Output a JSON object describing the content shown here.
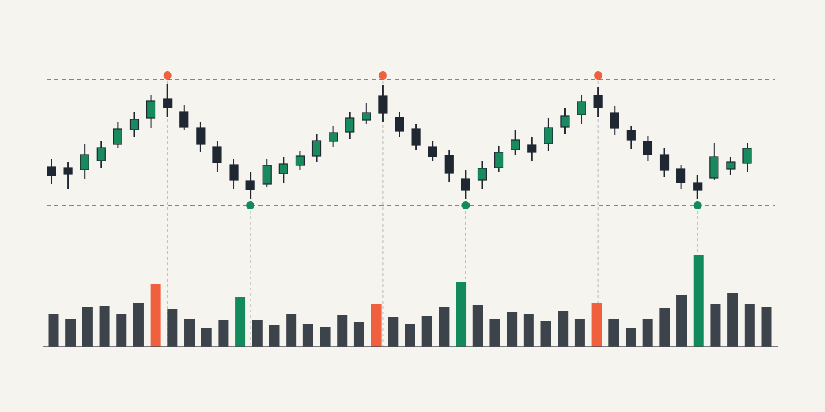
{
  "chart_data": [
    {
      "type": "candlestick",
      "open": [
        77,
        76,
        73,
        86,
        110,
        131,
        148,
        176,
        157,
        134,
        106,
        80,
        57,
        52,
        67,
        79,
        93,
        114,
        128,
        145,
        180,
        149,
        132,
        106,
        94,
        60,
        58,
        76,
        102,
        109,
        111,
        135,
        153,
        181,
        156,
        130,
        114,
        95,
        74,
        54,
        61,
        74,
        82
      ],
      "high": [
        88,
        84,
        110,
        115,
        142,
        157,
        182,
        198,
        167,
        142,
        115,
        88,
        70,
        88,
        92,
        100,
        125,
        137,
        157,
        170,
        196,
        157,
        140,
        115,
        102,
        72,
        85,
        108,
        130,
        120,
        148,
        162,
        182,
        193,
        165,
        137,
        122,
        105,
        80,
        65,
        112,
        92,
        112
      ],
      "low": [
        52,
        45,
        60,
        75,
        105,
        120,
        133,
        150,
        130,
        98,
        70,
        45,
        30,
        48,
        54,
        73,
        84,
        106,
        118,
        140,
        142,
        120,
        102,
        86,
        55,
        30,
        45,
        70,
        95,
        85,
        100,
        125,
        140,
        150,
        124,
        103,
        85,
        62,
        45,
        30,
        58,
        65,
        70
      ],
      "close": [
        64,
        66,
        95,
        105,
        132,
        146,
        173,
        163,
        135,
        110,
        83,
        58,
        44,
        79,
        81,
        93,
        115,
        127,
        148,
        156,
        155,
        129,
        109,
        92,
        68,
        43,
        75,
        98,
        116,
        98,
        134,
        151,
        172,
        163,
        133,
        116,
        95,
        72,
        54,
        43,
        92,
        84,
        104
      ],
      "up_color": "#198a5e",
      "down_color": "#1f2733",
      "ylim": [
        0,
        220
      ],
      "reference_lines": [
        {
          "value": 204,
          "color": "#5a5f6b"
        },
        {
          "value": 21,
          "color": "#5a5f6b"
        }
      ],
      "peak_markers": {
        "color": "#f0603f",
        "values": [
          null,
          null,
          null,
          null,
          null,
          null,
          null,
          210,
          null,
          null,
          null,
          null,
          null,
          null,
          null,
          null,
          null,
          null,
          null,
          null,
          210,
          null,
          null,
          null,
          null,
          null,
          null,
          null,
          null,
          null,
          null,
          null,
          null,
          210,
          null,
          null,
          null,
          null,
          null,
          null,
          null,
          null,
          null
        ]
      },
      "trough_markers": {
        "color": "#138a5e",
        "values": [
          null,
          null,
          null,
          null,
          null,
          null,
          null,
          null,
          null,
          null,
          null,
          null,
          21,
          null,
          null,
          null,
          null,
          null,
          null,
          null,
          null,
          null,
          null,
          null,
          null,
          21,
          null,
          null,
          null,
          null,
          null,
          null,
          null,
          null,
          null,
          null,
          null,
          null,
          null,
          21,
          null,
          null,
          null
        ]
      }
    },
    {
      "type": "bar",
      "values": [
        47,
        40,
        58,
        60,
        48,
        64,
        92,
        55,
        41,
        28,
        39,
        73,
        39,
        32,
        47,
        33,
        29,
        46,
        36,
        63,
        43,
        33,
        45,
        58,
        94,
        61,
        40,
        50,
        48,
        37,
        52,
        40,
        64,
        40,
        28,
        40,
        57,
        75,
        133,
        63,
        78,
        62,
        58
      ],
      "colors": [
        "#3d434a",
        "#3d434a",
        "#3d434a",
        "#3d434a",
        "#3d434a",
        "#3d434a",
        "#f0603f",
        "#3d434a",
        "#3d434a",
        "#3d434a",
        "#3d434a",
        "#138a5e",
        "#3d434a",
        "#3d434a",
        "#3d434a",
        "#3d434a",
        "#3d434a",
        "#3d434a",
        "#3d434a",
        "#f0603f",
        "#3d434a",
        "#3d434a",
        "#3d434a",
        "#3d434a",
        "#138a5e",
        "#3d434a",
        "#3d434a",
        "#3d434a",
        "#3d434a",
        "#3d434a",
        "#3d434a",
        "#3d434a",
        "#f0603f",
        "#3d434a",
        "#3d434a",
        "#3d434a",
        "#3d434a",
        "#3d434a",
        "#138a5e",
        "#3d434a",
        "#3d434a",
        "#3d434a",
        "#3d434a"
      ],
      "ylim": [
        0,
        140
      ]
    }
  ]
}
